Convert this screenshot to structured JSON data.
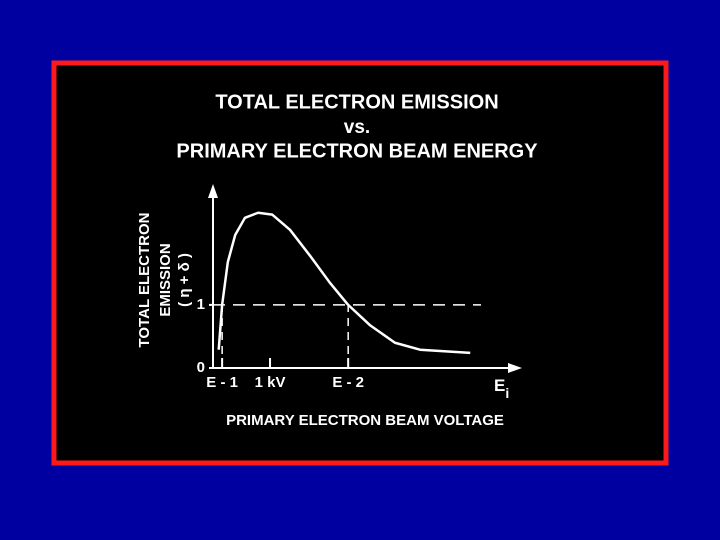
{
  "chart_data": {
    "type": "line",
    "title_lines": [
      "TOTAL ELECTRON EMISSION",
      "vs.",
      "PRIMARY ELECTRON BEAM ENERGY"
    ],
    "y_label_lines": [
      "TOTAL ELECTRON",
      "EMISSION",
      "( η + δ )"
    ],
    "x_label": "PRIMARY ELECTRON BEAM VOLTAGE",
    "x_axis_symbol": {
      "main": "E",
      "sub": "i"
    },
    "x": [
      0.1,
      0.16,
      0.26,
      0.39,
      0.56,
      0.79,
      1.04,
      1.35,
      1.7,
      2.05,
      2.37,
      2.75,
      3.19,
      3.63,
      4.51
    ],
    "series": [
      {
        "color": "#ffffff",
        "values": [
          0.29,
          1.0,
          1.68,
          2.11,
          2.38,
          2.46,
          2.43,
          2.19,
          1.78,
          1.35,
          1.0,
          0.68,
          0.4,
          0.29,
          0.24
        ]
      }
    ],
    "xlim": [
      0,
      5.4
    ],
    "ylim": [
      0,
      2.9
    ],
    "xticks": [
      {
        "value": 0.16,
        "label": "E - 1"
      },
      {
        "value": 1,
        "label": "1 kV"
      },
      {
        "value": 2.37,
        "label": "E - 2"
      }
    ],
    "yticks": [
      0,
      1
    ],
    "guide_y": 1,
    "guide_x": [
      0.16,
      2.37
    ],
    "grid": false
  }
}
